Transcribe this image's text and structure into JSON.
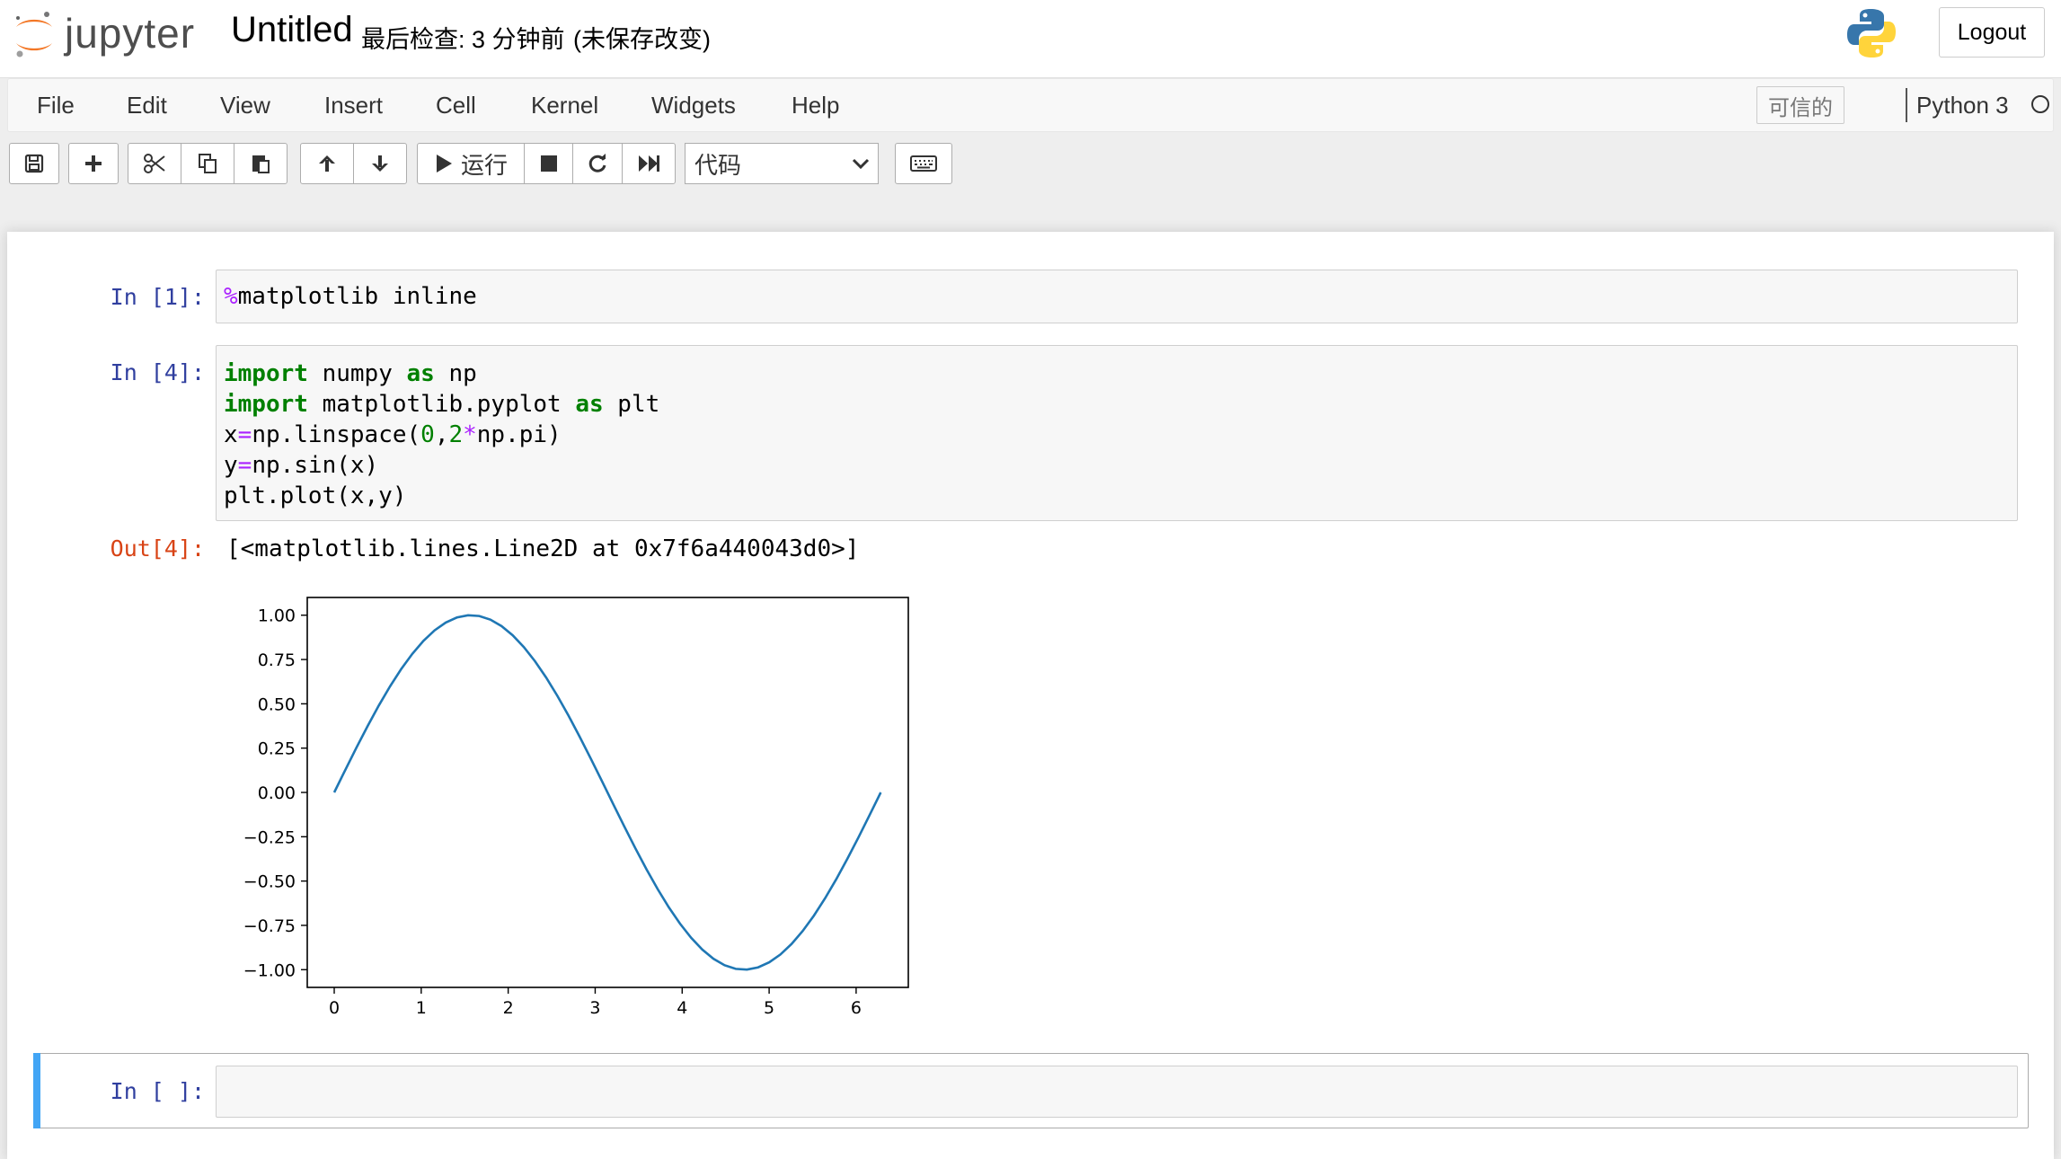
{
  "header": {
    "logo_text": "jupyter",
    "notebook_title": "Untitled",
    "checkpoint_status": "最后检查: 3 分钟前",
    "unsaved_status": "(未保存改变)",
    "logout_label": "Logout"
  },
  "menubar": {
    "items": [
      "File",
      "Edit",
      "View",
      "Insert",
      "Cell",
      "Kernel",
      "Widgets",
      "Help"
    ],
    "trusted_label": "可信的",
    "kernel_name": "Python 3"
  },
  "toolbar": {
    "run_label": "运行",
    "cell_type_selected": "代码",
    "icons": [
      "save-icon",
      "plus-icon",
      "cut-icon",
      "copy-icon",
      "paste-icon",
      "arrow-up-icon",
      "arrow-down-icon",
      "play-icon",
      "stop-icon",
      "restart-icon",
      "fast-forward-icon",
      "keyboard-icon"
    ]
  },
  "cells": {
    "cell1": {
      "prompt": "In [1]:",
      "code_prefix": "%",
      "code_rest": "matplotlib inline"
    },
    "cell2": {
      "prompt": "In [4]:",
      "lines": {
        "l1_kw": "import",
        "l1_mid": " numpy ",
        "l1_kw2": "as",
        "l1_end": " np",
        "l2_kw": "import",
        "l2_mid": " matplotlib.pyplot ",
        "l2_kw2": "as",
        "l2_end": " plt",
        "l3_a": "x",
        "l3_eq": "=",
        "l3_b": "np.linspace(",
        "l3_n0": "0",
        "l3_c": ",",
        "l3_n2": "2",
        "l3_mul": "*",
        "l3_d": "np.pi)",
        "l4_a": "y",
        "l4_eq": "=",
        "l4_b": "np.sin(x)",
        "l5": "plt.plot(x,y)"
      },
      "out_prompt": "Out[4]:",
      "output_text": "[<matplotlib.lines.Line2D at 0x7f6a440043d0>]"
    },
    "cell3": {
      "prompt": "In [ ]:"
    }
  },
  "chart_data": {
    "type": "line",
    "function": "y = sin(x), x = linspace(0, 2*pi)",
    "series": [
      {
        "x": [
          0,
          0.5,
          1.0,
          1.5708,
          2.0,
          2.5,
          3.0,
          3.1416,
          3.5,
          4.0,
          4.5,
          4.7124,
          5.0,
          5.5,
          6.0,
          6.2832
        ],
        "values": [
          0,
          0.479,
          0.841,
          1.0,
          0.909,
          0.598,
          0.141,
          0,
          -0.351,
          -0.757,
          -0.978,
          -1.0,
          -0.959,
          -0.706,
          -0.279,
          0
        ]
      }
    ],
    "xlim": [
      -0.31,
      6.6
    ],
    "ylim": [
      -1.1,
      1.1
    ],
    "xticks": [
      "0",
      "1",
      "2",
      "3",
      "4",
      "5",
      "6"
    ],
    "yticks": [
      "1.00",
      "0.75",
      "0.50",
      "0.25",
      "0.00",
      "−0.25",
      "−0.50",
      "−0.75",
      "−1.00"
    ],
    "line_color": "#1f77b4",
    "grid": false
  }
}
